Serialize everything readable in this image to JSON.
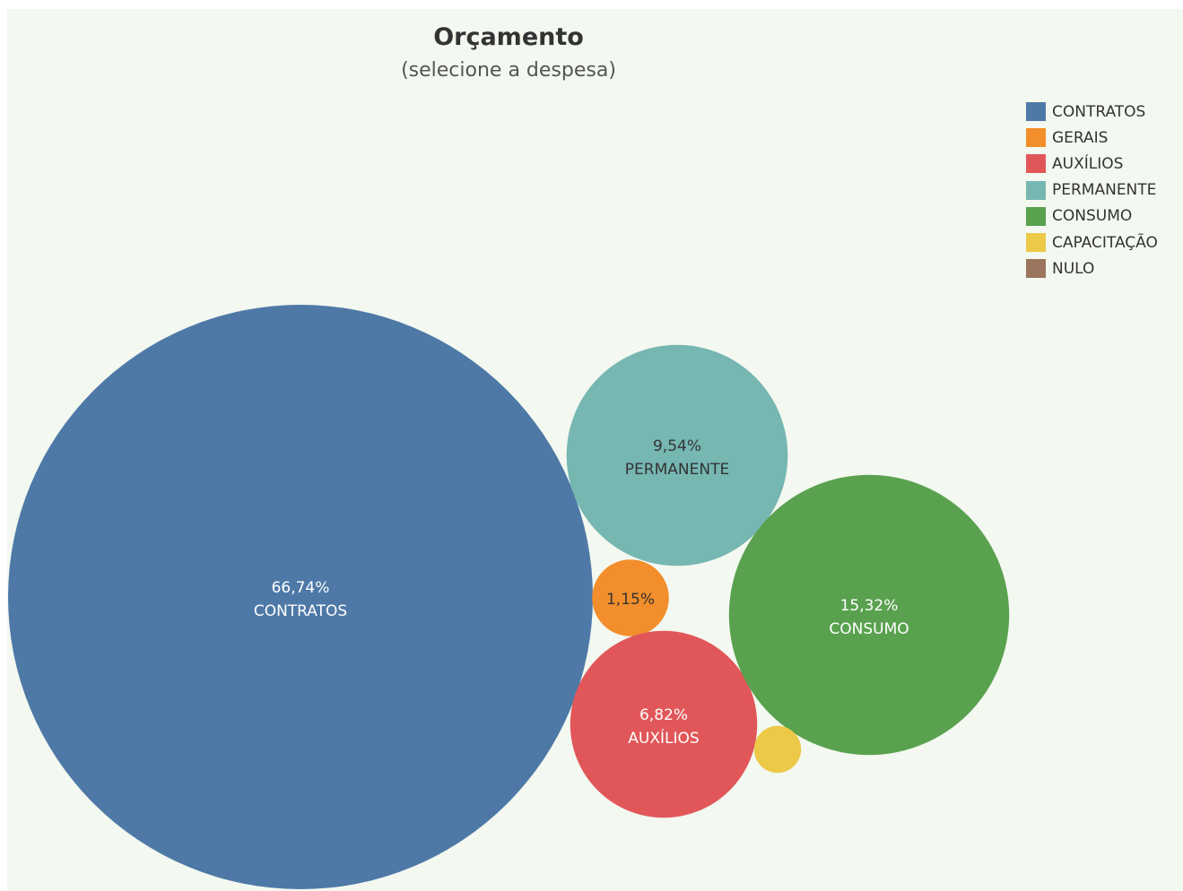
{
  "chart_data": {
    "type": "bubble",
    "title": "Orçamento",
    "subtitle": "(selecione a despesa)",
    "legend_position": "top-right",
    "series": [
      {
        "name": "CONTRATOS",
        "percent_label": "66,74%",
        "value": 66.74,
        "color": "#4e79a7",
        "text_color": "#ffffff",
        "show_label": true
      },
      {
        "name": "GERAIS",
        "percent_label": "1,15%",
        "value": 1.15,
        "color": "#f28e2b",
        "text_color": "#333333",
        "show_label": true
      },
      {
        "name": "AUXÍLIOS",
        "percent_label": "6,82%",
        "value": 6.82,
        "color": "#e15759",
        "text_color": "#ffffff",
        "show_label": true
      },
      {
        "name": "PERMANENTE",
        "percent_label": "9,54%",
        "value": 9.54,
        "color": "#76b7b2",
        "text_color": "#333333",
        "show_label": true
      },
      {
        "name": "CONSUMO",
        "percent_label": "15,32%",
        "value": 15.32,
        "color": "#59a14f",
        "text_color": "#ffffff",
        "show_label": true
      },
      {
        "name": "CAPACITAÇÃO",
        "percent_label": "",
        "value": 0.43,
        "color": "#edc948",
        "text_color": "#333333",
        "show_label": false
      },
      {
        "name": "NULO",
        "percent_label": "",
        "value": 0,
        "color": "#9c755f",
        "text_color": "#333333",
        "show_label": false
      }
    ]
  }
}
